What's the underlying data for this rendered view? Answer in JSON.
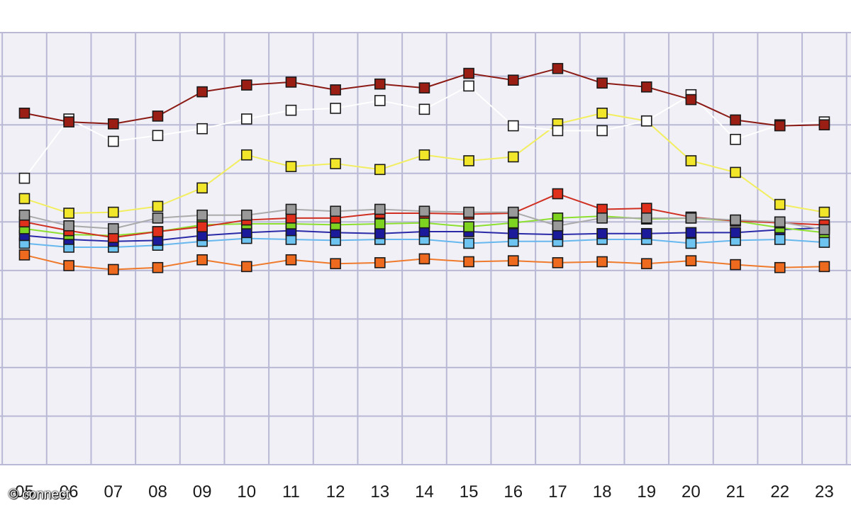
{
  "watermark": "© connect",
  "chart_data": {
    "type": "line",
    "title": "",
    "xlabel": "",
    "ylabel": "",
    "grid": true,
    "x": [
      "05",
      "06",
      "07",
      "08",
      "09",
      "10",
      "11",
      "12",
      "13",
      "14",
      "15",
      "16",
      "17",
      "18",
      "19",
      "20",
      "21",
      "22",
      "23"
    ],
    "series": [
      {
        "color": "#8b1a14",
        "marker": "#9a1e14",
        "line": "#8b1a14",
        "values": [
          6.2,
          5.3,
          5.1,
          5.9,
          8.4,
          9.1,
          9.4,
          8.6,
          9.2,
          8.8,
          10.3,
          9.6,
          10.8,
          9.3,
          8.9,
          7.6,
          5.5,
          4.9,
          5.0
        ]
      },
      {
        "color": "#ffffff",
        "marker": "#ffffff",
        "line": "#ffffff",
        "values": [
          -0.5,
          5.6,
          3.3,
          3.9,
          4.6,
          5.6,
          6.5,
          6.7,
          7.5,
          6.6,
          9.0,
          4.9,
          4.4,
          4.4,
          5.4,
          8.1,
          3.5,
          5.0,
          5.3
        ]
      },
      {
        "color": "#f5e63c",
        "marker": "#f2e62a",
        "line": "#f2ee60",
        "values": [
          -2.6,
          -4.1,
          -4.0,
          -3.4,
          -1.5,
          1.9,
          0.7,
          1.0,
          0.4,
          1.9,
          1.3,
          1.7,
          5.1,
          6.2,
          5.4,
          1.3,
          0.1,
          -3.2,
          -4.0
        ]
      },
      {
        "color": "#999999",
        "marker": "#999999",
        "line": "#aaaaaa",
        "values": [
          -4.3,
          -5.4,
          -5.7,
          -4.6,
          -4.3,
          -4.3,
          -3.7,
          -3.9,
          -3.7,
          -3.9,
          -4.0,
          -4.0,
          -5.4,
          -4.6,
          -4.6,
          -4.6,
          -4.8,
          -5.0,
          -5.8
        ]
      },
      {
        "color": "#e83a1c",
        "marker": "#e0301c",
        "line": "#d03022",
        "values": [
          -5.0,
          -5.9,
          -6.6,
          -6.0,
          -5.5,
          -4.8,
          -4.6,
          -4.6,
          -4.1,
          -4.1,
          -4.2,
          -4.1,
          -2.1,
          -3.7,
          -3.6,
          -4.5,
          -4.9,
          -5.1,
          -5.3
        ]
      },
      {
        "color": "#88dd22",
        "marker": "#7ed321",
        "line": "#8ee030",
        "values": [
          -5.7,
          -6.3,
          -6.4,
          -6.0,
          -5.3,
          -5.2,
          -5.2,
          -5.3,
          -5.2,
          -5.1,
          -5.5,
          -5.1,
          -4.6,
          -4.4,
          -4.7,
          -4.6,
          -4.9,
          -5.6,
          -6.1
        ]
      },
      {
        "color": "#1a1a9a",
        "marker": "#1a1a9a",
        "line": "#2a2aa8",
        "values": [
          -6.4,
          -6.8,
          -7.0,
          -6.9,
          -6.4,
          -6.1,
          -5.9,
          -6.1,
          -6.2,
          -6.0,
          -6.0,
          -6.2,
          -6.3,
          -6.2,
          -6.2,
          -6.1,
          -6.1,
          -5.8,
          -5.6
        ]
      },
      {
        "color": "#76c8f0",
        "marker": "#6ec4f0",
        "line": "#66b8ee",
        "values": [
          -7.2,
          -7.6,
          -7.6,
          -7.4,
          -7.0,
          -6.7,
          -6.8,
          -6.9,
          -6.8,
          -6.8,
          -7.2,
          -7.0,
          -7.0,
          -6.8,
          -6.8,
          -7.2,
          -6.9,
          -6.8,
          -7.1
        ]
      },
      {
        "color": "#ee6a1e",
        "marker": "#ee6a1e",
        "line": "#f07a2c",
        "values": [
          -8.4,
          -9.5,
          -9.9,
          -9.7,
          -8.9,
          -9.6,
          -8.9,
          -9.3,
          -9.2,
          -8.8,
          -9.1,
          -9.0,
          -9.2,
          -9.1,
          -9.3,
          -9.0,
          -9.4,
          -9.7,
          -9.6
        ]
      }
    ],
    "ylim": [
      -30,
      14.5
    ],
    "xlim": [
      4.45,
      23.6
    ]
  }
}
